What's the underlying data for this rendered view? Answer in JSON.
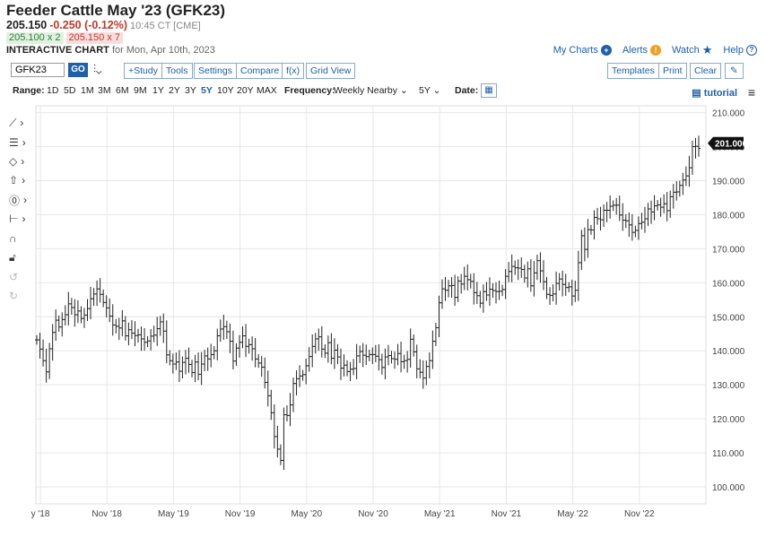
{
  "header": {
    "title": "Feeder Cattle May '23 (GFK23)",
    "last": "205.150",
    "change": "-0.250 (-0.12%)",
    "time": "10:45 CT [CME]",
    "bid": "205.100 x 2",
    "ask": "205.150 x 7",
    "chart_label": "INTERACTIVE CHART",
    "chart_date": "for Mon, Apr 10th, 2023"
  },
  "toplinks": {
    "my_charts": "My Charts",
    "alerts": "Alerts",
    "watch": "Watch",
    "help": "Help"
  },
  "toolbar": {
    "symbol": "GFK23",
    "go": "GO",
    "study": "+Study",
    "tools": "Tools",
    "settings": "Settings",
    "compare": "Compare",
    "fx": "f(x)",
    "grid_view": "Grid View",
    "templates": "Templates",
    "print": "Print",
    "clear": "Clear"
  },
  "range_bar": {
    "range_label": "Range:",
    "ranges": [
      "1D",
      "5D",
      "1M",
      "3M",
      "6M",
      "9M",
      "1Y",
      "2Y",
      "3Y",
      "5Y",
      "10Y",
      "20Y",
      "MAX"
    ],
    "active_range": "5Y",
    "frequency_label": "Frequency:",
    "frequency": "Weekly Nearby",
    "period": "5Y",
    "date_label": "Date:",
    "tutorial": "tutorial"
  },
  "colors": {
    "accent": "#1e5fa8",
    "down": "#c0392b",
    "up": "#2e7d32",
    "bars": "#222222",
    "grid": "#e6e6e6"
  },
  "chart_data": {
    "type": "ohlc",
    "title": "",
    "xlabel": "",
    "ylabel": "",
    "x_ticks": [
      "y '18",
      "Nov '18",
      "May '19",
      "Nov '19",
      "May '20",
      "Nov '20",
      "May '21",
      "Nov '21",
      "May '22",
      "Nov '22"
    ],
    "y_ticks": [
      "100.000",
      "110.000",
      "120.000",
      "130.000",
      "140.000",
      "150.000",
      "160.000",
      "170.000",
      "180.000",
      "190.000",
      "200.000",
      "210.000"
    ],
    "ylim": [
      95,
      212
    ],
    "last_price_label": "201.000",
    "grid": true,
    "series": [
      {
        "values": [
          143.2,
          140.5,
          137.1,
          133.8,
          140.6,
          145.4,
          149.0,
          147.0,
          149.2,
          150.6,
          153.8,
          152.7,
          150.6,
          151.7,
          149.5,
          150.5,
          152.4,
          155.3,
          156.7,
          158.2,
          156.6,
          154.2,
          152.6,
          150.2,
          147.6,
          147.2,
          146.7,
          148.8,
          144.4,
          146.2,
          145.2,
          144.5,
          144.7,
          143.5,
          142.5,
          142.9,
          144.3,
          144.6,
          146.5,
          148.5,
          145.8,
          138.8,
          137.1,
          136.1,
          136.7,
          134.0,
          136.6,
          137.8,
          136.0,
          133.6,
          136.7,
          133.1,
          136.1,
          138.5,
          137.6,
          138.9,
          140.0,
          144.4,
          146.4,
          147.1,
          145.6,
          142.8,
          137.0,
          140.8,
          142.5,
          144.4,
          141.3,
          141.8,
          140.6,
          137.6,
          136.4,
          135.2,
          130.7,
          126.8,
          121.8,
          114.8,
          111.1,
          107.8,
          121.2,
          121.0,
          124.1,
          130.4,
          131.8,
          132.6,
          133.0,
          135.6,
          138.3,
          141.3,
          143.5,
          144.1,
          140.5,
          139.3,
          142.4,
          137.8,
          140.2,
          138.2,
          134.9,
          135.8,
          133.9,
          134.6,
          134.8,
          138.5,
          139.8,
          138.7,
          138.3,
          138.9,
          138.9,
          138.4,
          137.4,
          135.1,
          138.2,
          138.6,
          137.7,
          137.5,
          139.2,
          136.8,
          137.1,
          137.5,
          143.4,
          139.7,
          134.7,
          133.7,
          132.0,
          135.4,
          137.1,
          142.8,
          146.8,
          154.1,
          158.2,
          157.8,
          159.1,
          159.2,
          155.7,
          160.5,
          159.6,
          161.9,
          160.9,
          160.4,
          157.1,
          156.2,
          154.0,
          157.4,
          156.4,
          158.1,
          157.7,
          157.4,
          157.5,
          158.0,
          161.9,
          163.3,
          164.8,
          164.4,
          164.3,
          163.9,
          161.4,
          164.1,
          159.1,
          162.9,
          166.5,
          163.5,
          160.3,
          156.6,
          156.3,
          156.7,
          159.8,
          161.1,
          159.5,
          158.6,
          158.8,
          156.1,
          157.8,
          165.9,
          173.8,
          169.8,
          175.6,
          175.5,
          179.2,
          178.8,
          178.5,
          181.3,
          181.3,
          182.5,
          182.8,
          182.8,
          179.9,
          178.4,
          178.2,
          177.0,
          174.8,
          175.4,
          177.4,
          177.8,
          178.8,
          181.7,
          180.8,
          182.6,
          182.9,
          182.2,
          183.2,
          181.2,
          185.3,
          186.6,
          186.7,
          188.6,
          190.2,
          191.4,
          193.8,
          200.0,
          200.1,
          199.5
        ]
      }
    ]
  }
}
